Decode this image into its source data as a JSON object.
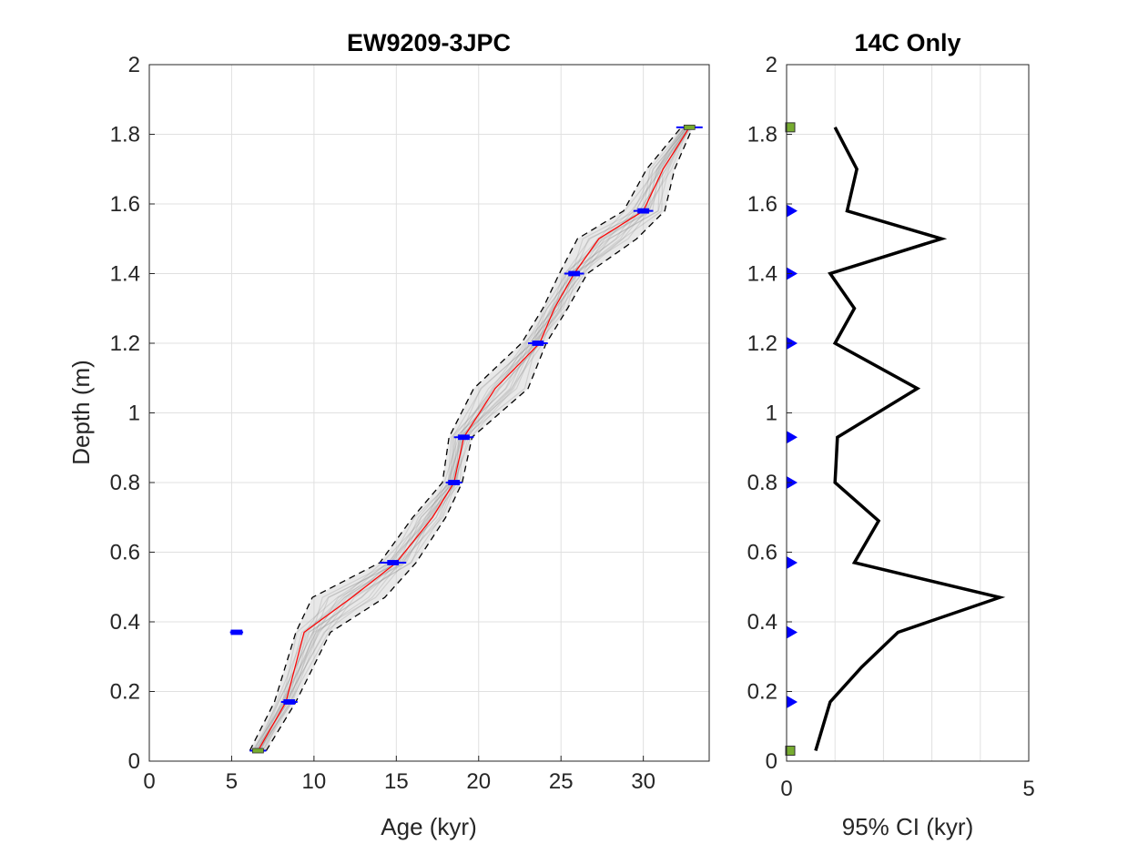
{
  "chart_data": [
    {
      "type": "line",
      "title": "EW9209-3JPC",
      "xlabel": "Age (kyr)",
      "ylabel": "Depth (m)",
      "xlim": [
        0,
        34
      ],
      "ylim": [
        0,
        2
      ],
      "xticks": [
        0,
        5,
        10,
        15,
        20,
        25,
        30
      ],
      "yticks": [
        0,
        0.2,
        0.4,
        0.6,
        0.8,
        1,
        1.2,
        1.4,
        1.6,
        1.8,
        2
      ],
      "ytick_labels": [
        "0",
        "0.2",
        "0.4",
        "0.6",
        "0.8",
        "1",
        "1.2",
        "1.4",
        "1.6",
        "1.8",
        "2"
      ],
      "grid": true,
      "colors": {
        "median": "#ff0000",
        "bounds": "#000000",
        "ensemble": "#808080",
        "dates": "#0000ff",
        "tiepoints": "#77ac30"
      },
      "series": [
        {
          "role": "median",
          "depth": [
            0.03,
            0.17,
            0.37,
            0.47,
            0.57,
            0.7,
            0.8,
            0.93,
            1.07,
            1.2,
            1.3,
            1.4,
            1.5,
            1.58,
            1.7,
            1.82
          ],
          "age": [
            6.6,
            8.3,
            9.4,
            12.3,
            15.0,
            17.2,
            18.5,
            19.1,
            21.0,
            23.7,
            24.6,
            25.8,
            27.3,
            30.0,
            31.2,
            32.8
          ]
        },
        {
          "role": "lower-bound",
          "depth": [
            0.03,
            0.17,
            0.37,
            0.47,
            0.57,
            0.7,
            0.8,
            0.93,
            1.07,
            1.2,
            1.3,
            1.4,
            1.5,
            1.58,
            1.7,
            1.82
          ],
          "age": [
            6.1,
            7.6,
            8.9,
            9.9,
            14.0,
            16.0,
            17.8,
            18.2,
            19.7,
            22.6,
            23.9,
            24.9,
            26.0,
            28.8,
            30.2,
            32.3
          ]
        },
        {
          "role": "upper-bound",
          "depth": [
            0.03,
            0.17,
            0.37,
            0.47,
            0.57,
            0.7,
            0.8,
            0.93,
            1.07,
            1.2,
            1.3,
            1.4,
            1.5,
            1.58,
            1.7,
            1.82
          ],
          "age": [
            7.1,
            8.9,
            11.0,
            14.3,
            16.2,
            18.0,
            19.0,
            19.6,
            23.0,
            24.1,
            25.4,
            26.6,
            29.6,
            31.3,
            31.9,
            33.0
          ]
        }
      ],
      "dates": [
        {
          "depth": 0.03,
          "age": 6.6,
          "err": 0.5,
          "kind": "tiepoint"
        },
        {
          "depth": 0.17,
          "age": 8.5,
          "err": 0.5,
          "kind": "radiocarbon"
        },
        {
          "depth": 0.37,
          "age": 5.3,
          "err": 0.4,
          "kind": "radiocarbon"
        },
        {
          "depth": 0.57,
          "age": 14.8,
          "err": 0.8,
          "kind": "radiocarbon"
        },
        {
          "depth": 0.8,
          "age": 18.5,
          "err": 0.5,
          "kind": "radiocarbon"
        },
        {
          "depth": 0.93,
          "age": 19.1,
          "err": 0.6,
          "kind": "radiocarbon"
        },
        {
          "depth": 1.2,
          "age": 23.6,
          "err": 0.6,
          "kind": "radiocarbon"
        },
        {
          "depth": 1.4,
          "age": 25.8,
          "err": 0.6,
          "kind": "radiocarbon"
        },
        {
          "depth": 1.58,
          "age": 30.0,
          "err": 0.6,
          "kind": "radiocarbon"
        },
        {
          "depth": 1.82,
          "age": 32.8,
          "err": 0.8,
          "kind": "tiepoint"
        }
      ]
    },
    {
      "type": "line",
      "title": "14C Only",
      "xlabel": "95% CI (kyr)",
      "ylabel": "",
      "xlim": [
        0,
        5
      ],
      "ylim": [
        0,
        2
      ],
      "xticks": [
        0,
        5
      ],
      "yticks": [
        0,
        0.2,
        0.4,
        0.6,
        0.8,
        1,
        1.2,
        1.4,
        1.6,
        1.8,
        2
      ],
      "ytick_labels": [
        "0",
        "0.2",
        "0.4",
        "0.6",
        "0.8",
        "1",
        "1.2",
        "1.4",
        "1.6",
        "1.8",
        "2"
      ],
      "grid": true,
      "colors": {
        "line": "#000000",
        "radiocarbon_marker": "#0000ff",
        "tiepoint_marker": "#77ac30"
      },
      "series": [
        {
          "role": "ci",
          "depth": [
            0.03,
            0.17,
            0.27,
            0.37,
            0.47,
            0.57,
            0.69,
            0.8,
            0.93,
            1.07,
            1.2,
            1.3,
            1.4,
            1.5,
            1.58,
            1.7,
            1.82
          ],
          "ci": [
            0.6,
            0.9,
            1.55,
            2.3,
            4.4,
            1.4,
            1.9,
            1.0,
            1.05,
            2.7,
            1.0,
            1.4,
            0.9,
            3.2,
            1.25,
            1.45,
            1.0
          ]
        }
      ],
      "markers": [
        {
          "depth": 0.03,
          "kind": "tiepoint"
        },
        {
          "depth": 0.17,
          "kind": "radiocarbon"
        },
        {
          "depth": 0.37,
          "kind": "radiocarbon"
        },
        {
          "depth": 0.57,
          "kind": "radiocarbon"
        },
        {
          "depth": 0.8,
          "kind": "radiocarbon"
        },
        {
          "depth": 0.93,
          "kind": "radiocarbon"
        },
        {
          "depth": 1.2,
          "kind": "radiocarbon"
        },
        {
          "depth": 1.4,
          "kind": "radiocarbon"
        },
        {
          "depth": 1.58,
          "kind": "radiocarbon"
        },
        {
          "depth": 1.82,
          "kind": "tiepoint"
        }
      ]
    }
  ]
}
